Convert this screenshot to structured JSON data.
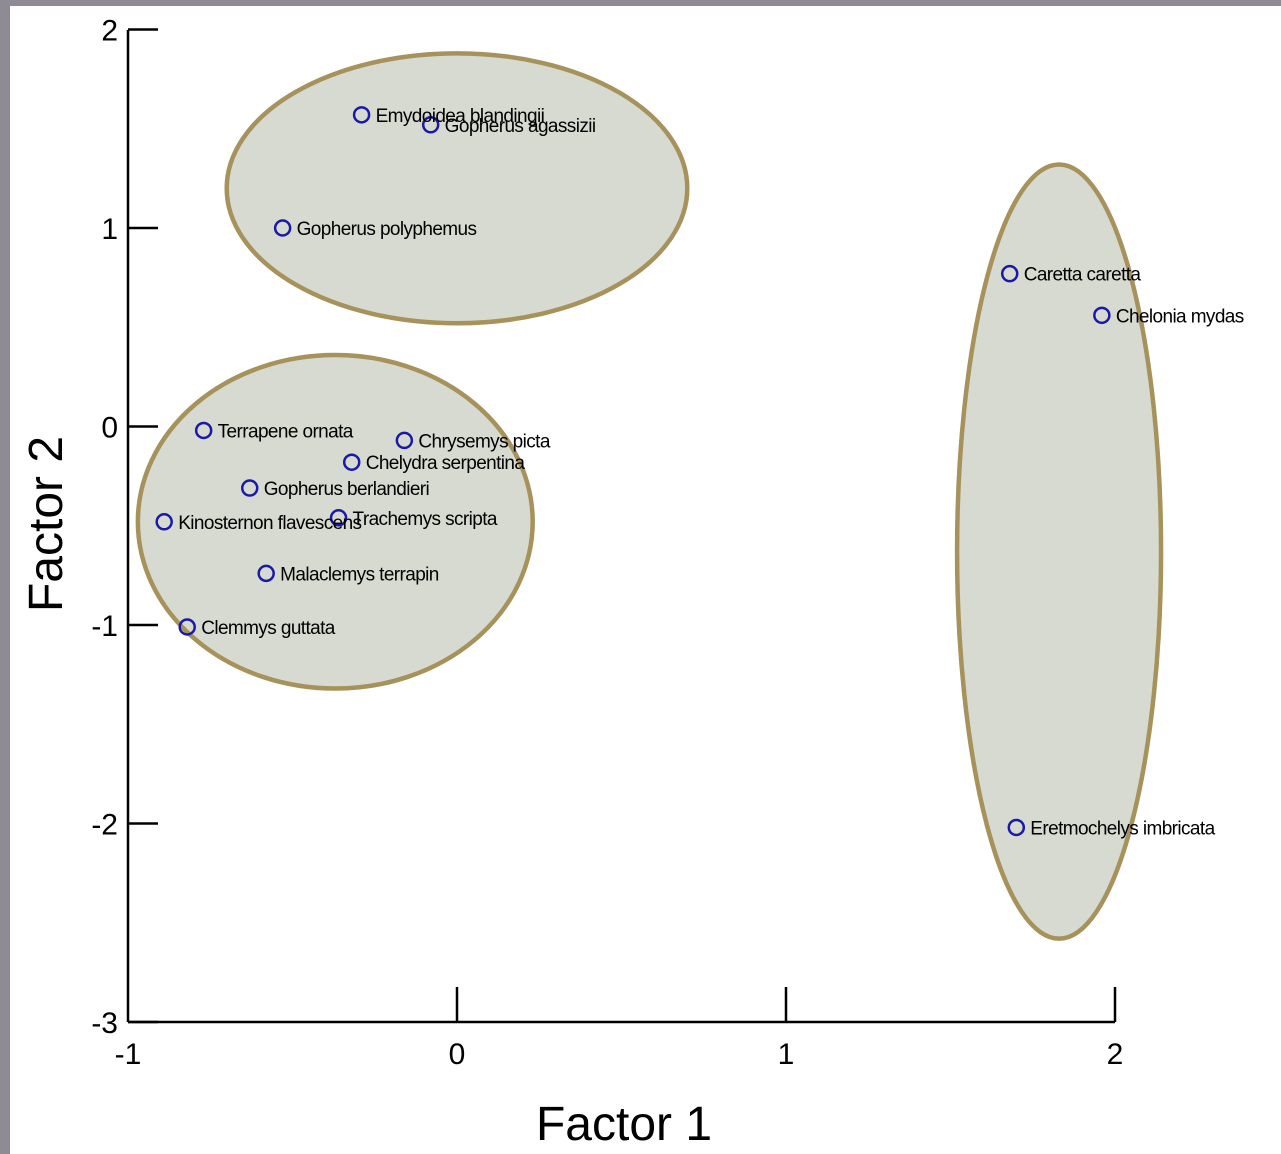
{
  "colors": {
    "frame": "#8e8b94",
    "point": "#1a1aa6",
    "ellipse_fill": "#d7dad0",
    "ellipse_stroke": "#a6925a",
    "axis": "#000000"
  },
  "chart_data": {
    "type": "scatter",
    "title": "",
    "xlabel": "Factor 1",
    "ylabel": "Factor 2",
    "xlim": [
      -1,
      2.5
    ],
    "ylim": [
      -3,
      2
    ],
    "xticks": [
      "-1",
      "0",
      "1",
      "2"
    ],
    "yticks": [
      "2",
      "1",
      "0",
      "-1",
      "-2",
      "-3"
    ],
    "grid": false,
    "points": [
      {
        "label": "Emydoidea blandingii",
        "x": -0.29,
        "y": 1.57
      },
      {
        "label": "Gopherus agassizii",
        "x": -0.08,
        "y": 1.52
      },
      {
        "label": "Gopherus polyphemus",
        "x": -0.53,
        "y": 1.0
      },
      {
        "label": "Caretta caretta",
        "x": 1.68,
        "y": 0.77
      },
      {
        "label": "Chelonia mydas",
        "x": 1.96,
        "y": 0.56
      },
      {
        "label": "Terrapene ornata",
        "x": -0.77,
        "y": -0.02
      },
      {
        "label": "Chrysemys picta",
        "x": -0.16,
        "y": -0.07
      },
      {
        "label": "Chelydra serpentina",
        "x": -0.32,
        "y": -0.18
      },
      {
        "label": "Gopherus berlandieri",
        "x": -0.63,
        "y": -0.31
      },
      {
        "label": "Kinosternon flavescens",
        "x": -0.89,
        "y": -0.48
      },
      {
        "label": "Trachemys scripta",
        "x": -0.36,
        "y": -0.46
      },
      {
        "label": "Malaclemys terrapin",
        "x": -0.58,
        "y": -0.74
      },
      {
        "label": "Clemmys guttata",
        "x": -0.82,
        "y": -1.01
      },
      {
        "label": "Eretmochelys imbricata",
        "x": 1.7,
        "y": -2.02
      }
    ],
    "groups": [
      {
        "cx": 0.0,
        "cy": 1.2,
        "rx": 0.7,
        "ry": 0.68
      },
      {
        "cx": -0.37,
        "cy": -0.48,
        "rx": 0.6,
        "ry": 0.84
      },
      {
        "cx": 1.83,
        "cy": -0.63,
        "rx": 0.31,
        "ry": 1.95
      }
    ]
  }
}
